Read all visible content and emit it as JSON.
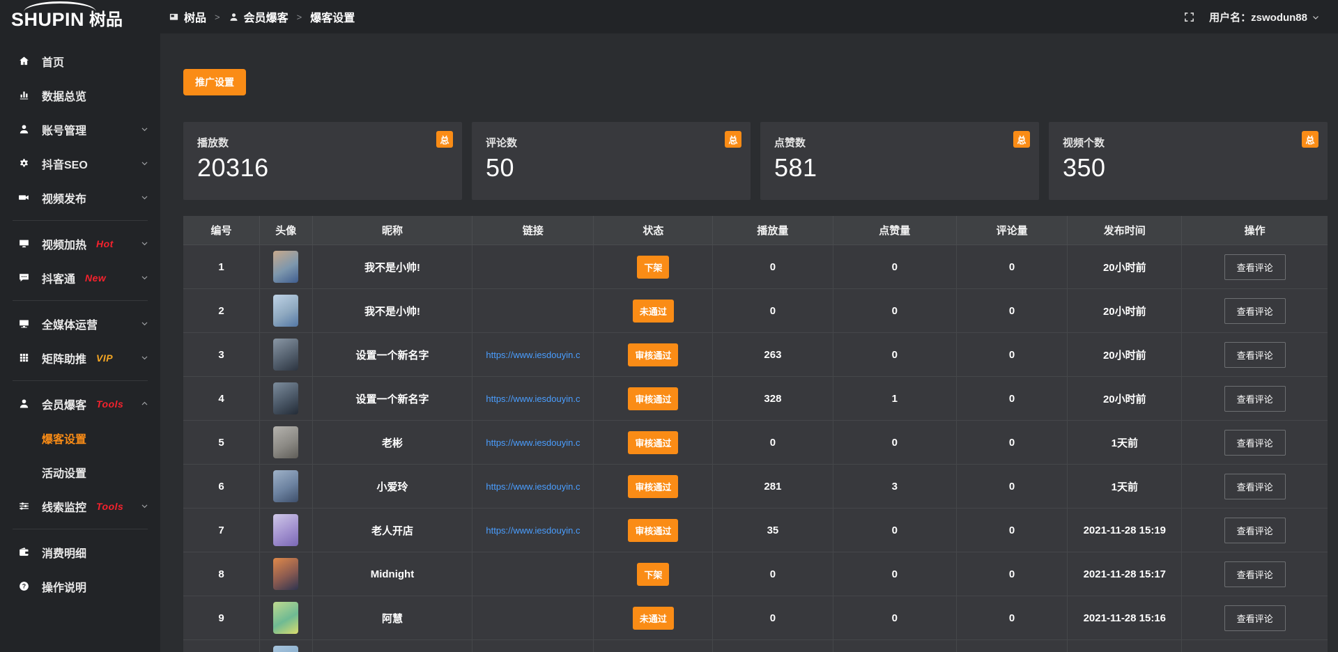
{
  "brand": {
    "logo_en": "SHUPIN",
    "logo_cn": "树品"
  },
  "topbar": {
    "breadcrumb": [
      {
        "name": "shupin",
        "icon": "panel-icon",
        "label": "树品"
      },
      {
        "name": "member-baoke",
        "icon": "user-icon",
        "label": "会员爆客"
      },
      {
        "name": "baoke-settings",
        "icon": "",
        "label": "爆客设置"
      }
    ],
    "separator": ">",
    "username_label": "用户名：zswodun88"
  },
  "sidebar": {
    "items": [
      {
        "type": "item",
        "name": "home",
        "icon": "home-icon",
        "label": "首页"
      },
      {
        "type": "item",
        "name": "data-overview",
        "icon": "bar-chart-icon",
        "label": "数据总览"
      },
      {
        "type": "item",
        "name": "account-management",
        "icon": "user-icon",
        "label": "账号管理",
        "chevron": "down"
      },
      {
        "type": "item",
        "name": "douyin-seo",
        "icon": "gear-icon",
        "label": "抖音SEO",
        "chevron": "down"
      },
      {
        "type": "item",
        "name": "video-publish",
        "icon": "video-icon",
        "label": "视频发布",
        "chevron": "down"
      },
      {
        "type": "divider"
      },
      {
        "type": "item",
        "name": "video-heating",
        "icon": "screen-icon",
        "label": "视频加热",
        "badge": "Hot",
        "badge_color": "#f5222d",
        "chevron": "down"
      },
      {
        "type": "item",
        "name": "douketong",
        "icon": "comment-icon",
        "label": "抖客通",
        "badge": "New",
        "badge_color": "#f5222d",
        "chevron": "down"
      },
      {
        "type": "divider"
      },
      {
        "type": "item",
        "name": "all-media-operation",
        "icon": "monitor-icon",
        "label": "全媒体运营",
        "chevron": "down"
      },
      {
        "type": "item",
        "name": "matrix-boost",
        "icon": "grid-icon",
        "label": "矩阵助推",
        "badge": "VIP",
        "badge_color": "#f5a623",
        "chevron": "down"
      },
      {
        "type": "divider"
      },
      {
        "type": "item",
        "name": "member-baoke",
        "icon": "member-icon",
        "label": "会员爆客",
        "badge": "Tools",
        "badge_color": "#f5222d",
        "chevron": "up",
        "active": true
      },
      {
        "type": "subitem",
        "name": "baoke-settings",
        "label": "爆客设置",
        "active": true
      },
      {
        "type": "subitem",
        "name": "activity-settings",
        "label": "活动设置"
      },
      {
        "type": "item",
        "name": "clue-monitor",
        "icon": "sliders-icon",
        "label": "线索监控",
        "badge": "Tools",
        "badge_color": "#f5222d",
        "chevron": "down"
      },
      {
        "type": "divider"
      },
      {
        "type": "item",
        "name": "consumption-details",
        "icon": "wallet-icon",
        "label": "消费明细"
      },
      {
        "type": "item",
        "name": "operation-guide",
        "icon": "question-icon",
        "label": "操作说明"
      }
    ]
  },
  "toolbar": {
    "promo_button": "推广设置"
  },
  "stats": {
    "badge": "总",
    "cards": [
      {
        "label": "播放数",
        "value": "20316"
      },
      {
        "label": "评论数",
        "value": "50"
      },
      {
        "label": "点赞数",
        "value": "581"
      },
      {
        "label": "视频个数",
        "value": "350"
      }
    ]
  },
  "table": {
    "columns": [
      {
        "label": "编号",
        "width": 6.7
      },
      {
        "label": "头像",
        "width": 4.6
      },
      {
        "label": "昵称",
        "width": 14.0
      },
      {
        "label": "链接",
        "width": 10.6
      },
      {
        "label": "状态",
        "width": 10.4
      },
      {
        "label": "播放量",
        "width": 10.5
      },
      {
        "label": "点赞量",
        "width": 10.8
      },
      {
        "label": "评论量",
        "width": 9.7
      },
      {
        "label": "发布时间",
        "width": 10.0
      },
      {
        "label": "操作",
        "width": 12.7
      }
    ],
    "rows": [
      {
        "id": "1",
        "avatar_colors": [
          "#c8a98c",
          "#7d97ad",
          "#3f5d8f"
        ],
        "nickname": "我不是小帅!",
        "link": "",
        "status": "下架",
        "play": "0",
        "like": "0",
        "comment": "0",
        "time": "20小时前",
        "action": "查看评论"
      },
      {
        "id": "2",
        "avatar_colors": [
          "#bfd3e6",
          "#8fa9c0",
          "#5377a5"
        ],
        "nickname": "我不是小帅!",
        "link": "",
        "status": "未通过",
        "play": "0",
        "like": "0",
        "comment": "0",
        "time": "20小时前",
        "action": "查看评论"
      },
      {
        "id": "3",
        "avatar_colors": [
          "#8a97a5",
          "#55616f",
          "#2c3440"
        ],
        "nickname": "设置一个新名字",
        "link": "https://www.iesdouyin.c",
        "status": "审核通过",
        "play": "263",
        "like": "0",
        "comment": "0",
        "time": "20小时前",
        "action": "查看评论"
      },
      {
        "id": "4",
        "avatar_colors": [
          "#7d8d9d",
          "#4a5766",
          "#232b36"
        ],
        "nickname": "设置一个新名字",
        "link": "https://www.iesdouyin.c",
        "status": "审核通过",
        "play": "328",
        "like": "1",
        "comment": "0",
        "time": "20小时前",
        "action": "查看评论"
      },
      {
        "id": "5",
        "avatar_colors": [
          "#b5b3ae",
          "#8c8a85",
          "#5f5d58"
        ],
        "nickname": "老彬",
        "link": "https://www.iesdouyin.c",
        "status": "审核通过",
        "play": "0",
        "like": "0",
        "comment": "0",
        "time": "1天前",
        "action": "查看评论"
      },
      {
        "id": "6",
        "avatar_colors": [
          "#9fb2c8",
          "#6c82a0",
          "#3e4f6b"
        ],
        "nickname": "小爱玲",
        "link": "https://www.iesdouyin.c",
        "status": "审核通过",
        "play": "281",
        "like": "3",
        "comment": "0",
        "time": "1天前",
        "action": "查看评论"
      },
      {
        "id": "7",
        "avatar_colors": [
          "#cfc8e8",
          "#a291cf",
          "#7a68b5"
        ],
        "nickname": "老人开店",
        "link": "https://www.iesdouyin.c",
        "status": "审核通过",
        "play": "35",
        "like": "0",
        "comment": "0",
        "time": "2021-11-28 15:19",
        "action": "查看评论"
      },
      {
        "id": "8",
        "avatar_colors": [
          "#e0894a",
          "#8a5a50",
          "#2e3450"
        ],
        "nickname": "Midnight",
        "link": "",
        "status": "下架",
        "play": "0",
        "like": "0",
        "comment": "0",
        "time": "2021-11-28 15:17",
        "action": "查看评论"
      },
      {
        "id": "9",
        "avatar_colors": [
          "#bfd98f",
          "#6fba93",
          "#dadc6e"
        ],
        "nickname": "阿慧",
        "link": "",
        "status": "未通过",
        "play": "0",
        "like": "0",
        "comment": "0",
        "time": "2021-11-28 15:16",
        "action": "查看评论"
      },
      {
        "id": "",
        "avatar_colors": [
          "#a8c4dc",
          "#88aecd",
          "#6898c0"
        ],
        "nickname": "",
        "link": "",
        "status": "",
        "play": "",
        "like": "",
        "comment": "",
        "time": "",
        "action": ""
      }
    ]
  },
  "colors": {
    "accent": "#fa8c16",
    "link": "#4a9eff",
    "hot_badge": "#f5222d",
    "vip_badge": "#f5a623",
    "panel": "#38393d",
    "chrome": "#222427"
  }
}
